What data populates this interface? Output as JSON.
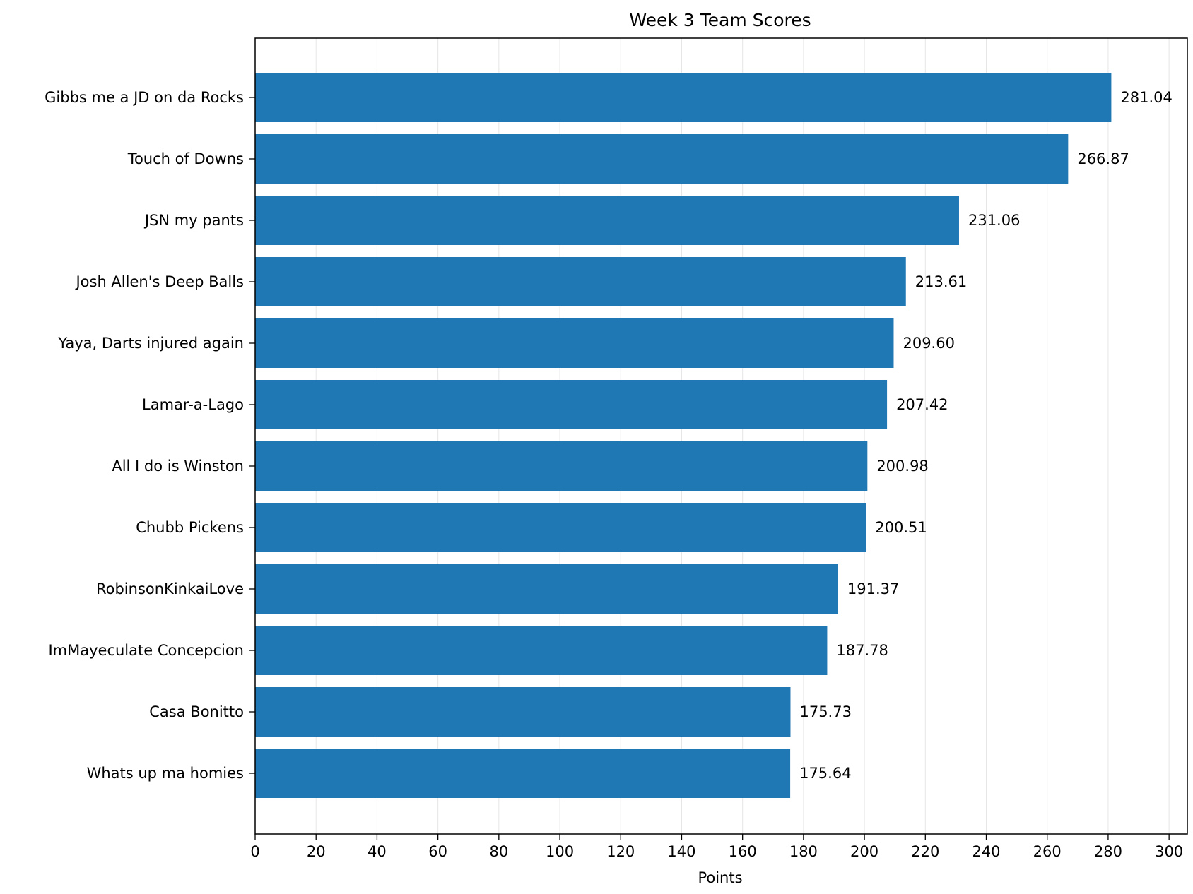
{
  "chart_data": {
    "type": "bar",
    "orientation": "horizontal",
    "title": "Week 3 Team Scores",
    "xlabel": "Points",
    "ylabel": "",
    "xlim": [
      0,
      306
    ],
    "xticks": [
      0,
      20,
      40,
      60,
      80,
      100,
      120,
      140,
      160,
      180,
      200,
      220,
      240,
      260,
      280,
      300
    ],
    "grid": "x",
    "bar_color": "#1f77b4",
    "categories": [
      "Gibbs me a JD on da Rocks",
      "Touch of Downs",
      "JSN my pants",
      "Josh Allen's Deep Balls",
      "Yaya, Darts injured again",
      "Lamar-a-Lago",
      "All I do is Winston",
      "Chubb Pickens",
      "RobinsonKinkaiLove",
      "ImMayeculate Concepcion",
      "Casa Bonitto",
      "Whats up ma homies"
    ],
    "values": [
      281.04,
      266.87,
      231.06,
      213.61,
      209.6,
      207.42,
      200.98,
      200.51,
      191.37,
      187.78,
      175.73,
      175.64
    ],
    "value_labels": [
      "281.04",
      "266.87",
      "231.06",
      "213.61",
      "209.60",
      "207.42",
      "200.98",
      "200.51",
      "191.37",
      "187.78",
      "175.73",
      "175.64"
    ]
  }
}
